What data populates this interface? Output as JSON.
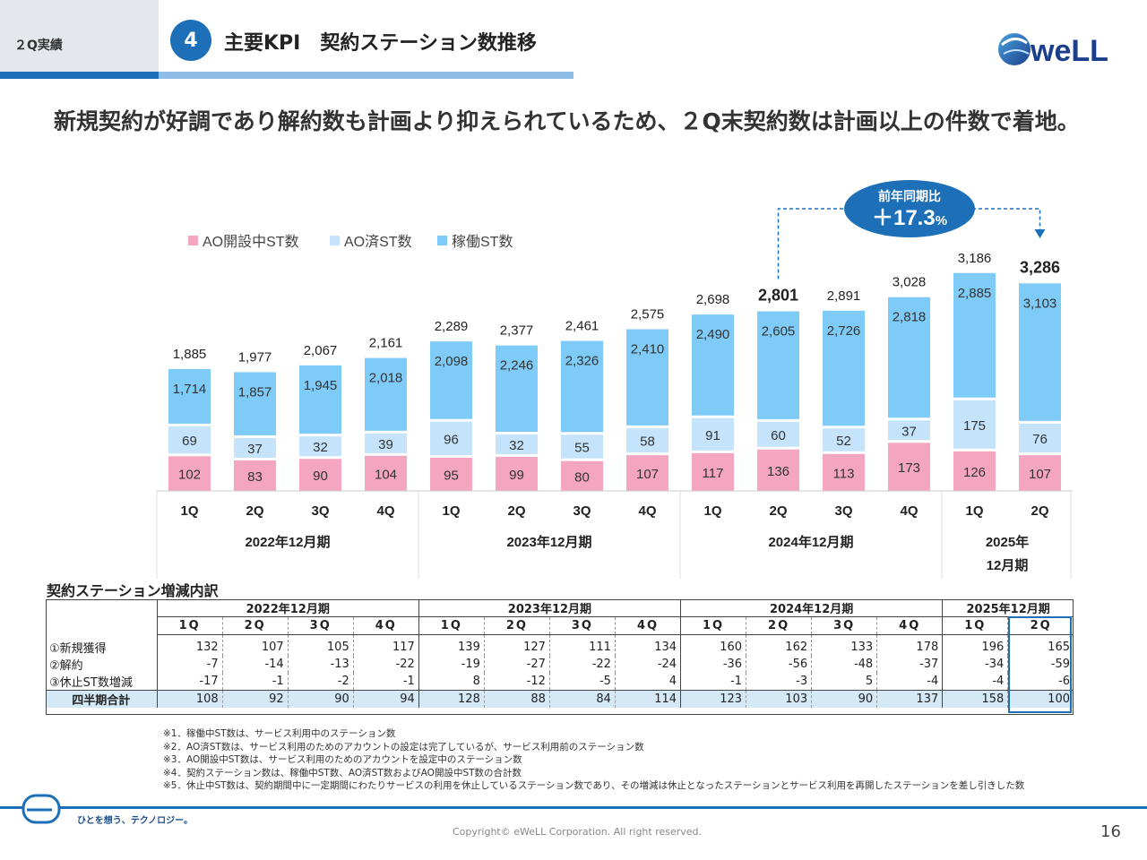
{
  "header": {
    "section_tag": "２Q実績",
    "section_number": "4",
    "title": "主要KPI　契約ステーション数推移",
    "logo_text": "weLL"
  },
  "lead": "新規契約が好調であり解約数も計画より抑えられているため、２Q末契約数は計画以上の件数で着地。",
  "chart_data": {
    "type": "bar",
    "stacked": true,
    "legend": [
      "AO開設中ST数",
      "AO済ST数",
      "稼働ST数"
    ],
    "legend_position": "top-left",
    "colors": {
      "ao_opening": "#f4a6c1",
      "ao_done": "#c5e3fa",
      "active": "#7fcbf8"
    },
    "categories": [
      "1Q",
      "2Q",
      "3Q",
      "4Q",
      "1Q",
      "2Q",
      "3Q",
      "4Q",
      "1Q",
      "2Q",
      "3Q",
      "4Q",
      "1Q",
      "2Q"
    ],
    "groups": [
      {
        "label": "2022年12月期",
        "count": 4
      },
      {
        "label": "2023年12月期",
        "count": 4
      },
      {
        "label": "2024年12月期",
        "count": 4
      },
      {
        "label": "2025年\n12月期",
        "count": 2
      }
    ],
    "series": [
      {
        "name": "AO開設中ST数",
        "values": [
          102,
          83,
          90,
          104,
          95,
          99,
          80,
          107,
          117,
          136,
          113,
          173,
          126,
          107
        ]
      },
      {
        "name": "AO済ST数",
        "values": [
          69,
          37,
          32,
          39,
          96,
          32,
          55,
          58,
          91,
          60,
          52,
          37,
          175,
          76
        ]
      },
      {
        "name": "稼働ST数",
        "values": [
          1714,
          1857,
          1945,
          2018,
          2098,
          2246,
          2326,
          2410,
          2490,
          2605,
          2726,
          2818,
          2885,
          3103
        ]
      }
    ],
    "totals": [
      1885,
      1977,
      2067,
      2161,
      2289,
      2377,
      2461,
      2575,
      2698,
      2801,
      2891,
      3028,
      3186,
      3286
    ],
    "emphasized_indices": [
      9,
      13
    ],
    "callout": {
      "label": "前年同期比",
      "value": "＋17.3",
      "unit": "%"
    }
  },
  "breakdown": {
    "title": "契約ステーション増減内訳",
    "years": [
      {
        "label": "2022年12月期",
        "span": 4
      },
      {
        "label": "2023年12月期",
        "span": 4
      },
      {
        "label": "2024年12月期",
        "span": 4
      },
      {
        "label": "2025年12月期",
        "span": 2
      }
    ],
    "quarters": [
      "1Q",
      "2Q",
      "3Q",
      "4Q",
      "1Q",
      "2Q",
      "3Q",
      "4Q",
      "1Q",
      "2Q",
      "3Q",
      "4Q",
      "1Q",
      "2Q"
    ],
    "rows": [
      {
        "label": "①新規獲得",
        "values": [
          "132",
          "107",
          "105",
          "117",
          "139",
          "127",
          "111",
          "134",
          "160",
          "162",
          "133",
          "178",
          "196",
          "165"
        ]
      },
      {
        "label": "②解約",
        "values": [
          "-7",
          "-14",
          "-13",
          "-22",
          "-19",
          "-27",
          "-22",
          "-24",
          "-36",
          "-56",
          "-48",
          "-37",
          "-34",
          "-59"
        ]
      },
      {
        "label": "③休止ST数増減",
        "values": [
          "-17",
          "-1",
          "-2",
          "-1",
          "8",
          "-12",
          "-5",
          "4",
          "-1",
          "-3",
          "5",
          "-4",
          "-4",
          "-6"
        ]
      }
    ],
    "total": {
      "label": "四半期合計",
      "values": [
        "108",
        "92",
        "90",
        "94",
        "128",
        "88",
        "84",
        "114",
        "123",
        "103",
        "90",
        "137",
        "158",
        "100"
      ]
    }
  },
  "notes": [
    "※1．稼働中ST数は、サービス利用中のステーション数",
    "※2．AO済ST数は、サービス利用のためのアカウントの設定は完了しているが、サービス利用前のステーション数",
    "※3．AO開設中ST数は、サービス利用のためのアカウントを設定中のステーション数",
    "※4．契約ステーション数は、稼働中ST数、AO済ST数およびAO開設中ST数の合計数",
    "※5．休止中ST数は、契約期間中に一定期間にわたりサービスの利用を休止しているステーション数であり、その増減は休止となったステーションとサービス利用を再開したステーションを差し引きした数"
  ],
  "footer": {
    "slogan": "ひとを想う、テクノロジー。",
    "copyright": "Copyright© eWeLL Corporation. All right reserved.",
    "page_number": "16"
  }
}
